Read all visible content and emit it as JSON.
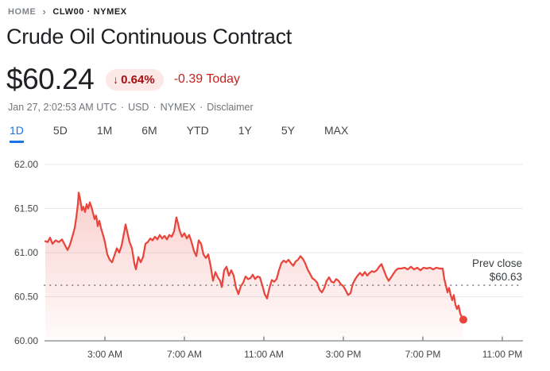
{
  "colors": {
    "accent_blue": "#1a73e8",
    "line_red": "#e8453c",
    "badge_bg": "#fce8e6",
    "badge_text": "#a50e0e",
    "negative_red": "#c5221f"
  },
  "breadcrumb": {
    "home": "HOME",
    "chevron": "›",
    "symbol": "CLW00 · NYMEX"
  },
  "header": {
    "title": "Crude Oil Continuous Contract",
    "price": "$60.24",
    "arrow_down": "↓",
    "change_percent": "0.64%",
    "change_today": "-0.39 Today"
  },
  "meta": {
    "timestamp": "Jan 27, 2:02:53 AM UTC",
    "separator": "·",
    "currency": "USD",
    "exchange": "NYMEX",
    "disclaimer": "Disclaimer"
  },
  "tabs": {
    "active_index": 0,
    "items": [
      {
        "label": "1D"
      },
      {
        "label": "5D"
      },
      {
        "label": "1M"
      },
      {
        "label": "6M"
      },
      {
        "label": "YTD"
      },
      {
        "label": "1Y"
      },
      {
        "label": "5Y"
      },
      {
        "label": "MAX"
      }
    ]
  },
  "chart_data": {
    "type": "area",
    "line_color": "#e8453c",
    "grid": true,
    "x_unit": "hours_since_midnight",
    "x_range": [
      0,
      24
    ],
    "y_range": [
      60.0,
      62.0
    ],
    "y_ticks": [
      {
        "v": 62.0,
        "label": "62.00"
      },
      {
        "v": 61.5,
        "label": "61.50"
      },
      {
        "v": 61.0,
        "label": "61.00"
      },
      {
        "v": 60.5,
        "label": "60.50"
      },
      {
        "v": 60.0,
        "label": "60.00"
      }
    ],
    "x_ticks": [
      {
        "t": 3,
        "label": "3:00 AM"
      },
      {
        "t": 7,
        "label": "7:00 AM"
      },
      {
        "t": 11,
        "label": "11:00 AM"
      },
      {
        "t": 15,
        "label": "3:00 PM"
      },
      {
        "t": 19,
        "label": "7:00 PM"
      },
      {
        "t": 23,
        "label": "11:00 PM"
      }
    ],
    "prev_close": {
      "value": 60.63,
      "label_line1": "Prev close",
      "label_line2": "$60.63"
    },
    "last_price": 60.24,
    "series": [
      {
        "name": "CLW00",
        "points": [
          [
            0,
            61.13
          ],
          [
            0.12,
            61.12
          ],
          [
            0.24,
            61.17
          ],
          [
            0.36,
            61.1
          ],
          [
            0.52,
            61.14
          ],
          [
            0.68,
            61.12
          ],
          [
            0.84,
            61.15
          ],
          [
            1.0,
            61.08
          ],
          [
            1.12,
            61.03
          ],
          [
            1.24,
            61.09
          ],
          [
            1.36,
            61.18
          ],
          [
            1.48,
            61.28
          ],
          [
            1.56,
            61.4
          ],
          [
            1.64,
            61.55
          ],
          [
            1.68,
            61.68
          ],
          [
            1.76,
            61.6
          ],
          [
            1.84,
            61.48
          ],
          [
            1.92,
            61.52
          ],
          [
            2.0,
            61.46
          ],
          [
            2.08,
            61.55
          ],
          [
            2.16,
            61.5
          ],
          [
            2.24,
            61.57
          ],
          [
            2.32,
            61.52
          ],
          [
            2.4,
            61.45
          ],
          [
            2.48,
            61.38
          ],
          [
            2.56,
            61.42
          ],
          [
            2.64,
            61.3
          ],
          [
            2.72,
            61.36
          ],
          [
            2.8,
            61.28
          ],
          [
            2.92,
            61.19
          ],
          [
            3.0,
            61.12
          ],
          [
            3.12,
            60.98
          ],
          [
            3.24,
            60.92
          ],
          [
            3.36,
            60.89
          ],
          [
            3.48,
            60.97
          ],
          [
            3.6,
            61.05
          ],
          [
            3.72,
            61.0
          ],
          [
            3.84,
            61.08
          ],
          [
            3.96,
            61.22
          ],
          [
            4.04,
            61.32
          ],
          [
            4.12,
            61.24
          ],
          [
            4.24,
            61.12
          ],
          [
            4.36,
            61.05
          ],
          [
            4.48,
            60.88
          ],
          [
            4.56,
            60.81
          ],
          [
            4.68,
            60.95
          ],
          [
            4.8,
            60.89
          ],
          [
            4.92,
            60.95
          ],
          [
            5.04,
            61.1
          ],
          [
            5.16,
            61.12
          ],
          [
            5.28,
            61.16
          ],
          [
            5.4,
            61.14
          ],
          [
            5.52,
            61.18
          ],
          [
            5.64,
            61.15
          ],
          [
            5.76,
            61.2
          ],
          [
            5.88,
            61.16
          ],
          [
            6.0,
            61.19
          ],
          [
            6.12,
            61.15
          ],
          [
            6.24,
            61.2
          ],
          [
            6.36,
            61.18
          ],
          [
            6.48,
            61.24
          ],
          [
            6.6,
            61.4
          ],
          [
            6.68,
            61.33
          ],
          [
            6.76,
            61.25
          ],
          [
            6.88,
            61.18
          ],
          [
            7.0,
            61.22
          ],
          [
            7.12,
            61.16
          ],
          [
            7.24,
            61.2
          ],
          [
            7.36,
            61.12
          ],
          [
            7.48,
            61.02
          ],
          [
            7.6,
            60.96
          ],
          [
            7.72,
            61.14
          ],
          [
            7.84,
            61.1
          ],
          [
            7.96,
            60.98
          ],
          [
            8.08,
            60.94
          ],
          [
            8.2,
            60.98
          ],
          [
            8.32,
            60.85
          ],
          [
            8.44,
            60.68
          ],
          [
            8.56,
            60.78
          ],
          [
            8.68,
            60.72
          ],
          [
            8.8,
            60.68
          ],
          [
            8.88,
            60.61
          ],
          [
            9.0,
            60.8
          ],
          [
            9.12,
            60.84
          ],
          [
            9.24,
            60.74
          ],
          [
            9.36,
            60.8
          ],
          [
            9.48,
            60.74
          ],
          [
            9.6,
            60.6
          ],
          [
            9.72,
            60.53
          ],
          [
            9.84,
            60.62
          ],
          [
            9.96,
            60.66
          ],
          [
            10.08,
            60.73
          ],
          [
            10.2,
            60.7
          ],
          [
            10.32,
            60.71
          ],
          [
            10.44,
            60.75
          ],
          [
            10.56,
            60.7
          ],
          [
            10.68,
            60.73
          ],
          [
            10.8,
            60.72
          ],
          [
            10.92,
            60.63
          ],
          [
            11.04,
            60.53
          ],
          [
            11.16,
            60.48
          ],
          [
            11.28,
            60.6
          ],
          [
            11.4,
            60.69
          ],
          [
            11.52,
            60.67
          ],
          [
            11.64,
            60.7
          ],
          [
            11.76,
            60.8
          ],
          [
            11.88,
            60.88
          ],
          [
            12.0,
            60.91
          ],
          [
            12.12,
            60.89
          ],
          [
            12.24,
            60.92
          ],
          [
            12.36,
            60.88
          ],
          [
            12.48,
            60.85
          ],
          [
            12.6,
            60.9
          ],
          [
            12.72,
            60.92
          ],
          [
            12.84,
            60.96
          ],
          [
            12.96,
            60.93
          ],
          [
            13.08,
            60.88
          ],
          [
            13.2,
            60.81
          ],
          [
            13.32,
            60.76
          ],
          [
            13.44,
            60.71
          ],
          [
            13.56,
            60.69
          ],
          [
            13.68,
            60.66
          ],
          [
            13.8,
            60.58
          ],
          [
            13.92,
            60.55
          ],
          [
            14.04,
            60.6
          ],
          [
            14.16,
            60.68
          ],
          [
            14.28,
            60.72
          ],
          [
            14.4,
            60.67
          ],
          [
            14.52,
            60.66
          ],
          [
            14.64,
            60.7
          ],
          [
            14.76,
            60.68
          ],
          [
            14.88,
            60.64
          ],
          [
            15.0,
            60.62
          ],
          [
            15.12,
            60.57
          ],
          [
            15.24,
            60.52
          ],
          [
            15.36,
            60.54
          ],
          [
            15.48,
            60.65
          ],
          [
            15.6,
            60.7
          ],
          [
            15.72,
            60.74
          ],
          [
            15.84,
            60.77
          ],
          [
            15.96,
            60.74
          ],
          [
            16.08,
            60.78
          ],
          [
            16.2,
            60.74
          ],
          [
            16.32,
            60.77
          ],
          [
            16.44,
            60.79
          ],
          [
            16.56,
            60.78
          ],
          [
            16.68,
            60.8
          ],
          [
            16.8,
            60.84
          ],
          [
            16.92,
            60.87
          ],
          [
            17.04,
            60.8
          ],
          [
            17.16,
            60.73
          ],
          [
            17.28,
            60.68
          ],
          [
            17.4,
            60.72
          ],
          [
            17.52,
            60.76
          ],
          [
            17.64,
            60.8
          ],
          [
            17.76,
            60.82
          ],
          [
            17.92,
            60.82
          ],
          [
            18.08,
            60.83
          ],
          [
            18.24,
            60.81
          ],
          [
            18.4,
            60.84
          ],
          [
            18.56,
            60.81
          ],
          [
            18.72,
            60.83
          ],
          [
            18.88,
            60.8
          ],
          [
            19.04,
            60.83
          ],
          [
            19.2,
            60.82
          ],
          [
            19.36,
            60.83
          ],
          [
            19.52,
            60.81
          ],
          [
            19.68,
            60.83
          ],
          [
            19.84,
            60.82
          ],
          [
            20.0,
            60.82
          ],
          [
            20.08,
            60.7
          ],
          [
            20.16,
            60.63
          ],
          [
            20.24,
            60.55
          ],
          [
            20.32,
            60.6
          ],
          [
            20.4,
            60.52
          ],
          [
            20.48,
            60.46
          ],
          [
            20.56,
            60.52
          ],
          [
            20.64,
            60.41
          ],
          [
            20.72,
            60.36
          ],
          [
            20.8,
            60.4
          ],
          [
            20.88,
            60.31
          ],
          [
            20.96,
            60.27
          ],
          [
            21.04,
            60.24
          ]
        ]
      }
    ]
  }
}
